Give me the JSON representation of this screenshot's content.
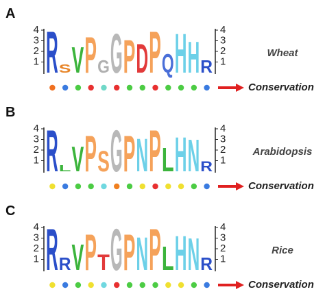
{
  "chart_data": [
    {
      "type": "logo",
      "title": "A",
      "species": "Wheat",
      "ylim": [
        0,
        4
      ],
      "yticks": [
        1,
        2,
        3,
        4
      ],
      "conservation": "Conservation",
      "letters": [
        "R",
        "S",
        "V",
        "P",
        "G",
        "G",
        "P",
        "D",
        "P",
        "Q",
        "H",
        "H",
        "R"
      ],
      "colors": [
        "#2b4fc9",
        "#e8862a",
        "#3cb43c",
        "#f5a25a",
        "#b0b0b0",
        "#b8b8b8",
        "#f5a25a",
        "#e23a3a",
        "#f5a25a",
        "#4a6fd8",
        "#6cd0e8",
        "#6cd0e8",
        "#2b4fc9"
      ],
      "values": [
        4,
        0.8,
        2.5,
        3.5,
        1.2,
        3.8,
        3.2,
        2.8,
        4,
        1.8,
        3.8,
        3,
        1.2
      ],
      "dots": [
        "#f07020",
        "#3a7be0",
        "#4ccc44",
        "#e83030",
        "#70d8c8",
        "#e83030",
        "#4ccc44",
        "#4ccc44",
        "#e83030",
        "#4ccc44",
        "#4ccc44",
        "#4ccc44",
        "#3a7be0"
      ]
    },
    {
      "type": "logo",
      "title": "B",
      "species": "Arabidopsis",
      "ylim": [
        0,
        4
      ],
      "yticks": [
        1,
        2,
        3,
        4
      ],
      "conservation": "Conservation",
      "letters": [
        "R",
        "L",
        "V",
        "P",
        "S",
        "G",
        "P",
        "N",
        "P",
        "L",
        "H",
        "N",
        "R"
      ],
      "colors": [
        "#2b4fc9",
        "#3cb43c",
        "#3cb43c",
        "#f5a25a",
        "#f5a25a",
        "#b8b8b8",
        "#f5a25a",
        "#6cd0e8",
        "#f5a25a",
        "#3cb43c",
        "#6cd0e8",
        "#6cd0e8",
        "#2b4fc9"
      ],
      "values": [
        4,
        0.6,
        2.4,
        3.5,
        2,
        4,
        3.5,
        3.2,
        4,
        2.3,
        3.3,
        3.1,
        1
      ],
      "dots": [
        "#f0e030",
        "#3a7be0",
        "#4ccc44",
        "#4ccc44",
        "#70d8e0",
        "#f08020",
        "#4ccc44",
        "#f0e030",
        "#e83030",
        "#f0e030",
        "#f0e030",
        "#4ccc44",
        "#3a7be0"
      ]
    },
    {
      "type": "logo",
      "title": "C",
      "species": "Rice",
      "ylim": [
        0,
        4
      ],
      "yticks": [
        1,
        2,
        3,
        4
      ],
      "conservation": "Conservation",
      "letters": [
        "R",
        "R",
        "V",
        "P",
        "T",
        "G",
        "P",
        "N",
        "P",
        "L",
        "H",
        "N",
        "R"
      ],
      "colors": [
        "#2b4fc9",
        "#2b4fc9",
        "#3cb43c",
        "#f5a25a",
        "#e23a3a",
        "#b8b8b8",
        "#f5a25a",
        "#6cd0e8",
        "#f5a25a",
        "#3cb43c",
        "#6cd0e8",
        "#6cd0e8",
        "#2b4fc9"
      ],
      "values": [
        4,
        1.2,
        2.5,
        3.5,
        1.5,
        4,
        3.5,
        3.2,
        4,
        2.3,
        3.3,
        3.1,
        1.2
      ],
      "dots": [
        "#f0e030",
        "#3a7be0",
        "#4ccc44",
        "#f0e030",
        "#70d8e0",
        "#e83030",
        "#4ccc44",
        "#4ccc44",
        "#4ccc44",
        "#f0e030",
        "#f0e030",
        "#4ccc44",
        "#3a7be0"
      ]
    }
  ]
}
